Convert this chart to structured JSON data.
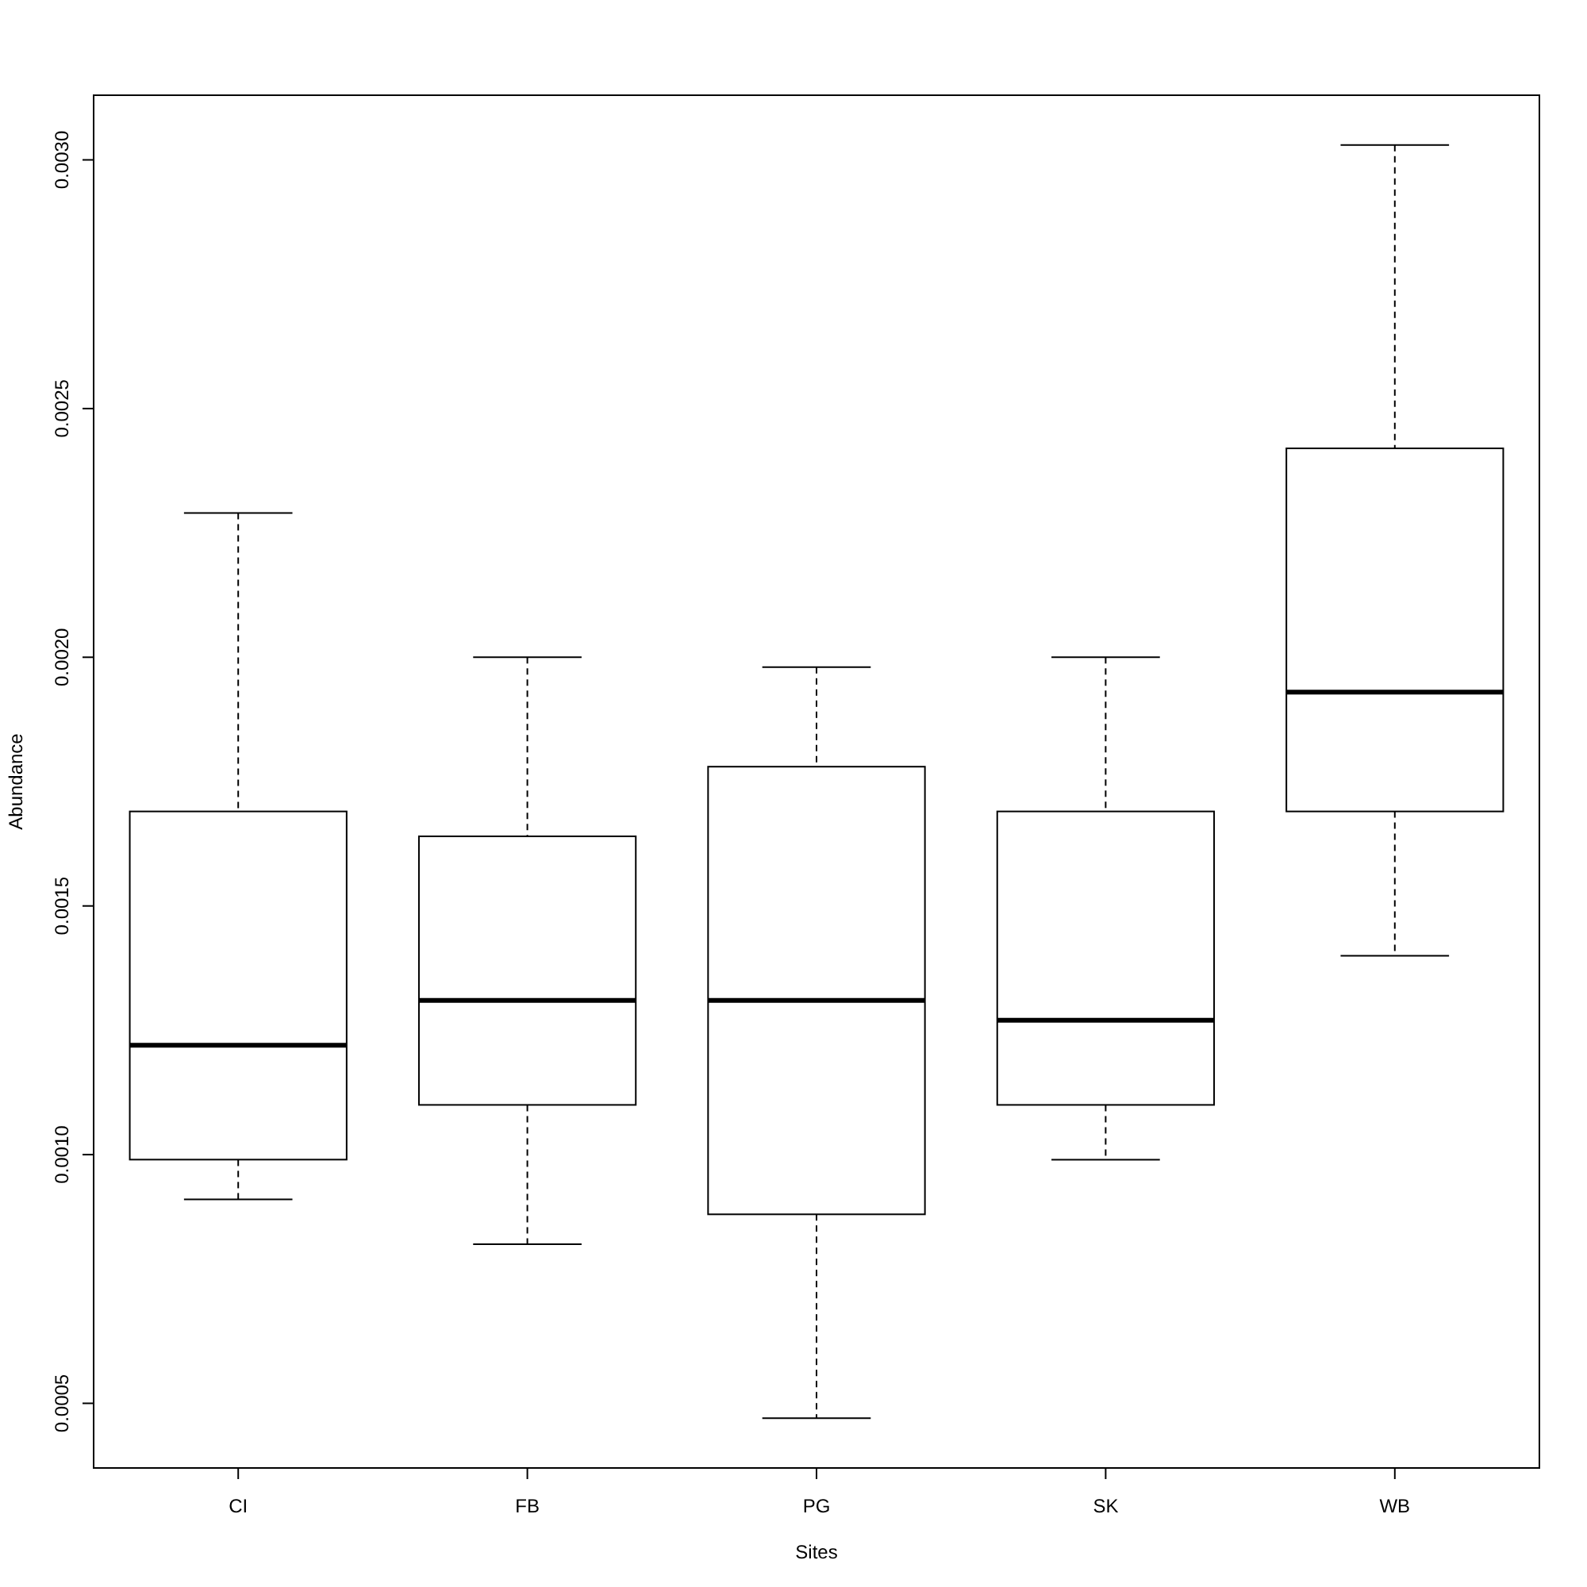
{
  "chart_data": {
    "type": "box",
    "xlabel": "Sites",
    "ylabel": "Abundance",
    "categories": [
      "CI",
      "FB",
      "PG",
      "SK",
      "WB"
    ],
    "boxes": [
      {
        "low": 0.00091,
        "q1": 0.00099,
        "median": 0.00122,
        "q3": 0.00169,
        "high": 0.00229
      },
      {
        "low": 0.00082,
        "q1": 0.0011,
        "median": 0.00131,
        "q3": 0.00164,
        "high": 0.002
      },
      {
        "low": 0.00047,
        "q1": 0.00088,
        "median": 0.00131,
        "q3": 0.00178,
        "high": 0.00198
      },
      {
        "low": 0.00099,
        "q1": 0.0011,
        "median": 0.00127,
        "q3": 0.00169,
        "high": 0.002
      },
      {
        "low": 0.0014,
        "q1": 0.00169,
        "median": 0.00193,
        "q3": 0.00242,
        "high": 0.00303
      }
    ],
    "ylim": [
      0.00037,
      0.00313
    ],
    "yticks": [
      {
        "value": 0.0005,
        "label": "0.0005"
      },
      {
        "value": 0.001,
        "label": "0.0010"
      },
      {
        "value": 0.0015,
        "label": "0.0015"
      },
      {
        "value": 0.002,
        "label": "0.0020"
      },
      {
        "value": 0.0025,
        "label": "0.0025"
      },
      {
        "value": 0.003,
        "label": "0.0030"
      }
    ],
    "grid": false
  }
}
